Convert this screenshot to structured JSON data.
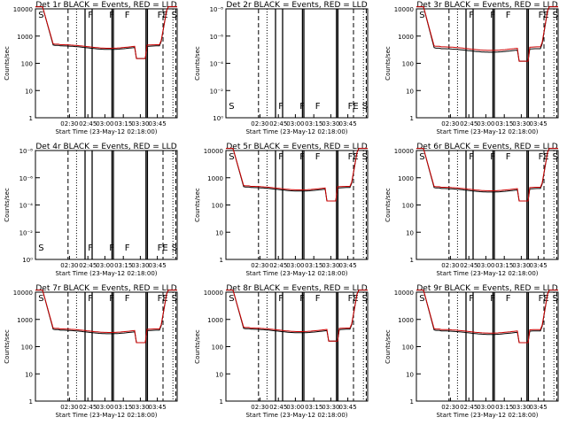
{
  "figure": {
    "x_label": "Start Time (23-May-12 02:18:00)",
    "y_label": "Counts/sec",
    "x_ticks": [
      "02:30",
      "02:45",
      "03:00",
      "03:15",
      "03:30",
      "03:45"
    ],
    "colors": {
      "events": "#000000",
      "lld": "#cc0000",
      "background": "#ffffff"
    }
  },
  "chart_data": [
    {
      "type": "line",
      "title": "Det 1r BLACK = Events, RED = LLD",
      "scale": "log",
      "has_data": true,
      "y_ticks": [
        "1",
        "10",
        "100",
        "1000",
        "10000"
      ],
      "flags": [
        "S",
        "F",
        "F",
        "F",
        "FE",
        "S"
      ],
      "events_level": 380,
      "lld_level": 420,
      "dip": [
        0.7,
        0.78,
        150
      ]
    },
    {
      "type": "line",
      "title": "Det 2r BLACK = Events, RED = LLD",
      "scale": "log",
      "has_data": false,
      "y_ticks": [
        "10⁰",
        "10⁻²",
        "10⁻⁴",
        "10⁻⁶",
        "10⁻⁸"
      ],
      "flags": [
        "S",
        "F",
        "F",
        "F",
        "FE",
        "S"
      ]
    },
    {
      "type": "line",
      "title": "Det 3r BLACK = Events, RED = LLD",
      "scale": "log",
      "has_data": true,
      "y_ticks": [
        "1",
        "10",
        "100",
        "1000",
        "10000"
      ],
      "flags": [
        "S",
        "F",
        "F",
        "F",
        "FE",
        "S"
      ],
      "events_level": 300,
      "lld_level": 350,
      "dip": [
        0.72,
        0.8,
        120
      ]
    },
    {
      "type": "line",
      "title": "Det 4r BLACK = Events, RED = LLD",
      "scale": "log",
      "has_data": false,
      "y_ticks": [
        "10⁰",
        "10⁻²",
        "10⁻⁴",
        "10⁻⁶",
        "10⁻⁸"
      ],
      "flags": [
        "S",
        "F",
        "F",
        "F",
        "FE",
        "S"
      ]
    },
    {
      "type": "line",
      "title": "Det 5r BLACK = Events, RED = LLD",
      "scale": "log",
      "has_data": true,
      "y_ticks": [
        "1",
        "10",
        "100",
        "1000",
        "10000"
      ],
      "flags": [
        "S",
        "F",
        "F",
        "F",
        "FE",
        "S"
      ],
      "events_level": 380,
      "lld_level": 420,
      "dip": [
        0.7,
        0.78,
        140
      ]
    },
    {
      "type": "line",
      "title": "Det 6r BLACK = Events, RED = LLD",
      "scale": "log",
      "has_data": true,
      "y_ticks": [
        "1",
        "10",
        "100",
        "1000",
        "10000"
      ],
      "flags": [
        "S",
        "F",
        "F",
        "F",
        "FE",
        "S"
      ],
      "events_level": 350,
      "lld_level": 390,
      "dip": [
        0.72,
        0.8,
        140
      ]
    },
    {
      "type": "line",
      "title": "Det 7r BLACK = Events, RED = LLD",
      "scale": "log",
      "has_data": true,
      "y_ticks": [
        "1",
        "10",
        "100",
        "1000",
        "10000"
      ],
      "flags": [
        "S",
        "F",
        "F",
        "F",
        "FE",
        "S"
      ],
      "events_level": 350,
      "lld_level": 390,
      "dip": [
        0.7,
        0.78,
        140
      ]
    },
    {
      "type": "line",
      "title": "Det 8r BLACK = Events, RED = LLD",
      "scale": "log",
      "has_data": true,
      "y_ticks": [
        "1",
        "10",
        "100",
        "1000",
        "10000"
      ],
      "flags": [
        "S",
        "F",
        "F",
        "F",
        "FE",
        "S"
      ],
      "events_level": 380,
      "lld_level": 420,
      "dip": [
        0.72,
        0.8,
        160
      ]
    },
    {
      "type": "line",
      "title": "Det 9r BLACK = Events, RED = LLD",
      "scale": "log",
      "has_data": true,
      "y_ticks": [
        "1",
        "10",
        "100",
        "1000",
        "10000"
      ],
      "flags": [
        "S",
        "F",
        "F",
        "F",
        "FE",
        "S"
      ],
      "events_level": 330,
      "lld_level": 370,
      "dip": [
        0.72,
        0.8,
        140
      ]
    }
  ]
}
